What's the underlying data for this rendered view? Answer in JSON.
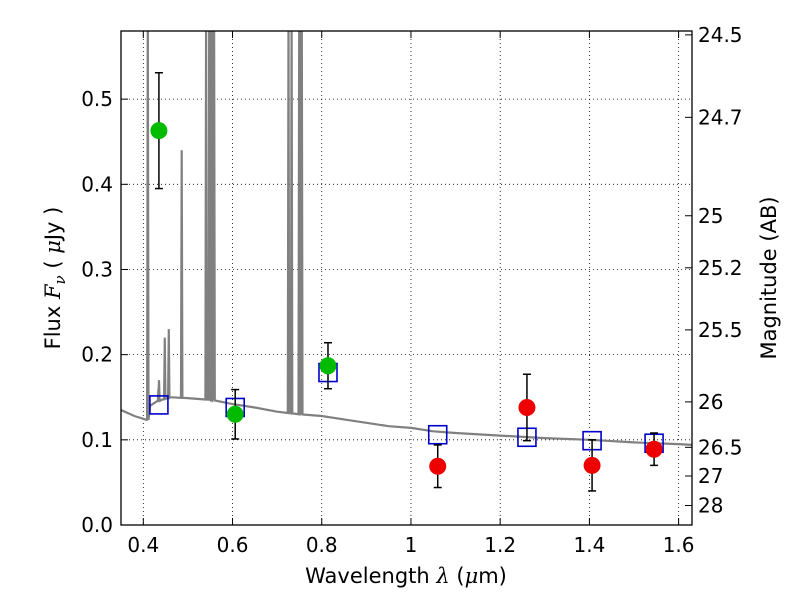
{
  "chart_data": {
    "type": "scatter",
    "xlabel": "Wavelength  λ (μm)",
    "xlabel_parts": {
      "prefix": "Wavelength  ",
      "symbol": "λ",
      "open": " (",
      "mu": "μ",
      "unit": "m)"
    },
    "ylabel": "Flux  Fν  ( μJy )",
    "ylabel_parts": {
      "prefix": "Flux  ",
      "symbol": "F",
      "subscript": "ν",
      "open": "  ( ",
      "mu": "μ",
      "unit": "Jy )"
    },
    "ylabel_right": "Magnitude (AB)",
    "xlim": [
      0.35,
      1.63
    ],
    "ylim": [
      0.0,
      0.58
    ],
    "grid": true,
    "x_ticks": [
      0.4,
      0.6,
      0.8,
      1.0,
      1.2,
      1.4,
      1.6
    ],
    "x_tick_labels": [
      "0.4",
      "0.6",
      "0.8",
      "1",
      "1.2",
      "1.4",
      "1.6"
    ],
    "y_ticks": [
      0.0,
      0.1,
      0.2,
      0.3,
      0.4,
      0.5
    ],
    "y_tick_labels": [
      "0.0",
      "0.1",
      "0.2",
      "0.3",
      "0.4",
      "0.5"
    ],
    "right_ticks_mag": [
      24.5,
      24.7,
      25,
      25.2,
      25.5,
      26,
      26.5,
      27,
      28
    ],
    "right_tick_labels": [
      "24.5",
      "24.7",
      "25",
      "25.2",
      "25.5",
      "26",
      "26.5",
      "27",
      "28"
    ],
    "series": [
      {
        "kind": "model-spectrum-line",
        "color": "#808080",
        "continuum": [
          [
            0.35,
            0.135
          ],
          [
            0.38,
            0.128
          ],
          [
            0.41,
            0.123
          ],
          [
            0.415,
            0.14
          ],
          [
            0.43,
            0.145
          ],
          [
            0.46,
            0.15
          ],
          [
            0.5,
            0.149
          ],
          [
            0.55,
            0.147
          ],
          [
            0.6,
            0.142
          ],
          [
            0.65,
            0.138
          ],
          [
            0.7,
            0.133
          ],
          [
            0.75,
            0.13
          ],
          [
            0.8,
            0.128
          ],
          [
            0.85,
            0.124
          ],
          [
            0.9,
            0.12
          ],
          [
            0.95,
            0.116
          ],
          [
            1.0,
            0.114
          ],
          [
            1.05,
            0.11
          ],
          [
            1.1,
            0.108
          ],
          [
            1.2,
            0.105
          ],
          [
            1.3,
            0.102
          ],
          [
            1.4,
            0.1
          ],
          [
            1.5,
            0.097
          ],
          [
            1.6,
            0.095
          ],
          [
            1.63,
            0.094
          ]
        ],
        "emission_lines": [
          [
            0.4101,
            0.6
          ],
          [
            0.4341,
            0.16
          ],
          [
            0.4351,
            0.17
          ],
          [
            0.4481,
            0.22
          ],
          [
            0.4571,
            0.23
          ],
          [
            0.4861,
            0.44
          ],
          [
            0.5407,
            0.6
          ],
          [
            0.5477,
            0.6
          ],
          [
            0.5517,
            0.6
          ],
          [
            0.5557,
            0.6
          ],
          [
            0.5587,
            0.6
          ],
          [
            0.7254,
            0.6
          ],
          [
            0.7324,
            0.6
          ],
          [
            0.7494,
            0.6
          ],
          [
            0.7524,
            0.6
          ],
          [
            0.7554,
            0.6
          ]
        ]
      },
      {
        "kind": "model-photometry",
        "marker": "open-square",
        "color": "#0000cc",
        "x": [
          0.435,
          0.606,
          0.814,
          1.06,
          1.26,
          1.406,
          1.545
        ],
        "y": [
          0.141,
          0.138,
          0.179,
          0.106,
          0.103,
          0.099,
          0.096
        ]
      },
      {
        "kind": "optical-detections",
        "marker": "filled-circle",
        "color": "#00bb00",
        "x": [
          0.435,
          0.606,
          0.814
        ],
        "y": [
          0.463,
          0.13,
          0.187
        ],
        "yerr": [
          0.068,
          0.029,
          0.027
        ]
      },
      {
        "kind": "nir-detections",
        "marker": "filled-circle",
        "color": "#ee0000",
        "x": [
          1.06,
          1.26,
          1.406,
          1.545
        ],
        "y": [
          0.069,
          0.138,
          0.07,
          0.089
        ],
        "yerr": [
          0.025,
          0.039,
          0.03,
          0.019
        ]
      }
    ]
  }
}
